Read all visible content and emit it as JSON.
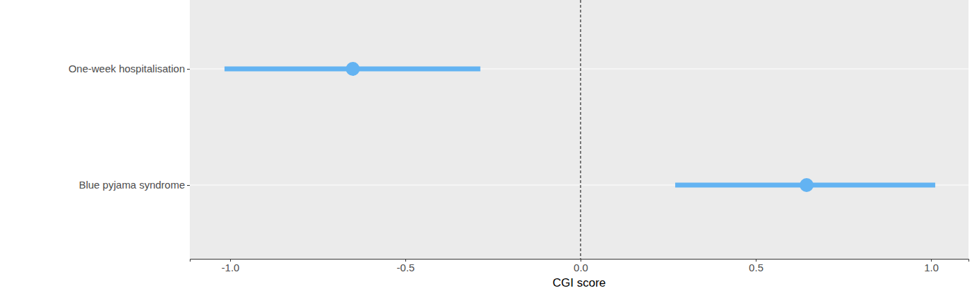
{
  "chart_data": {
    "type": "forest",
    "categories": [
      "One-week hospitalisation",
      "Blue pyjama syndrome"
    ],
    "values": [
      -0.65,
      0.645
    ],
    "ci_lower": [
      -1.016,
      0.27
    ],
    "ci_upper": [
      -0.286,
      1.012
    ],
    "color": "#63b3f2",
    "xlabel": "CGI score",
    "xlim": [
      -1.115,
      1.107
    ],
    "xticks": [
      {
        "value": -1,
        "label": "-1.0"
      },
      -0.5,
      {
        "value": 0,
        "label": "0.0"
      },
      0.5,
      {
        "value": 1,
        "label": "1.0"
      }
    ],
    "reference_line": 0,
    "orientation": "horizontal",
    "grid": true
  }
}
